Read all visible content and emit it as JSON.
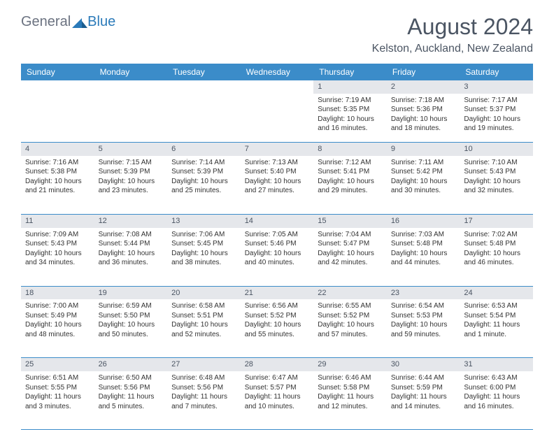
{
  "logo": {
    "part1": "General",
    "part2": "Blue"
  },
  "title": "August 2024",
  "location": "Kelston, Auckland, New Zealand",
  "colors": {
    "header_bg": "#3b8cc9",
    "header_text": "#ffffff",
    "daynum_bg": "#e5e7eb",
    "border": "#3b8cc9",
    "title_text": "#4b5563",
    "logo_gray": "#6b7280",
    "logo_blue": "#2a7ab9"
  },
  "daysOfWeek": [
    "Sunday",
    "Monday",
    "Tuesday",
    "Wednesday",
    "Thursday",
    "Friday",
    "Saturday"
  ],
  "weeks": [
    [
      null,
      null,
      null,
      null,
      {
        "n": "1",
        "sr": "7:19 AM",
        "ss": "5:35 PM",
        "dl": "10 hours and 16 minutes."
      },
      {
        "n": "2",
        "sr": "7:18 AM",
        "ss": "5:36 PM",
        "dl": "10 hours and 18 minutes."
      },
      {
        "n": "3",
        "sr": "7:17 AM",
        "ss": "5:37 PM",
        "dl": "10 hours and 19 minutes."
      }
    ],
    [
      {
        "n": "4",
        "sr": "7:16 AM",
        "ss": "5:38 PM",
        "dl": "10 hours and 21 minutes."
      },
      {
        "n": "5",
        "sr": "7:15 AM",
        "ss": "5:39 PM",
        "dl": "10 hours and 23 minutes."
      },
      {
        "n": "6",
        "sr": "7:14 AM",
        "ss": "5:39 PM",
        "dl": "10 hours and 25 minutes."
      },
      {
        "n": "7",
        "sr": "7:13 AM",
        "ss": "5:40 PM",
        "dl": "10 hours and 27 minutes."
      },
      {
        "n": "8",
        "sr": "7:12 AM",
        "ss": "5:41 PM",
        "dl": "10 hours and 29 minutes."
      },
      {
        "n": "9",
        "sr": "7:11 AM",
        "ss": "5:42 PM",
        "dl": "10 hours and 30 minutes."
      },
      {
        "n": "10",
        "sr": "7:10 AM",
        "ss": "5:43 PM",
        "dl": "10 hours and 32 minutes."
      }
    ],
    [
      {
        "n": "11",
        "sr": "7:09 AM",
        "ss": "5:43 PM",
        "dl": "10 hours and 34 minutes."
      },
      {
        "n": "12",
        "sr": "7:08 AM",
        "ss": "5:44 PM",
        "dl": "10 hours and 36 minutes."
      },
      {
        "n": "13",
        "sr": "7:06 AM",
        "ss": "5:45 PM",
        "dl": "10 hours and 38 minutes."
      },
      {
        "n": "14",
        "sr": "7:05 AM",
        "ss": "5:46 PM",
        "dl": "10 hours and 40 minutes."
      },
      {
        "n": "15",
        "sr": "7:04 AM",
        "ss": "5:47 PM",
        "dl": "10 hours and 42 minutes."
      },
      {
        "n": "16",
        "sr": "7:03 AM",
        "ss": "5:48 PM",
        "dl": "10 hours and 44 minutes."
      },
      {
        "n": "17",
        "sr": "7:02 AM",
        "ss": "5:48 PM",
        "dl": "10 hours and 46 minutes."
      }
    ],
    [
      {
        "n": "18",
        "sr": "7:00 AM",
        "ss": "5:49 PM",
        "dl": "10 hours and 48 minutes."
      },
      {
        "n": "19",
        "sr": "6:59 AM",
        "ss": "5:50 PM",
        "dl": "10 hours and 50 minutes."
      },
      {
        "n": "20",
        "sr": "6:58 AM",
        "ss": "5:51 PM",
        "dl": "10 hours and 52 minutes."
      },
      {
        "n": "21",
        "sr": "6:56 AM",
        "ss": "5:52 PM",
        "dl": "10 hours and 55 minutes."
      },
      {
        "n": "22",
        "sr": "6:55 AM",
        "ss": "5:52 PM",
        "dl": "10 hours and 57 minutes."
      },
      {
        "n": "23",
        "sr": "6:54 AM",
        "ss": "5:53 PM",
        "dl": "10 hours and 59 minutes."
      },
      {
        "n": "24",
        "sr": "6:53 AM",
        "ss": "5:54 PM",
        "dl": "11 hours and 1 minute."
      }
    ],
    [
      {
        "n": "25",
        "sr": "6:51 AM",
        "ss": "5:55 PM",
        "dl": "11 hours and 3 minutes."
      },
      {
        "n": "26",
        "sr": "6:50 AM",
        "ss": "5:56 PM",
        "dl": "11 hours and 5 minutes."
      },
      {
        "n": "27",
        "sr": "6:48 AM",
        "ss": "5:56 PM",
        "dl": "11 hours and 7 minutes."
      },
      {
        "n": "28",
        "sr": "6:47 AM",
        "ss": "5:57 PM",
        "dl": "11 hours and 10 minutes."
      },
      {
        "n": "29",
        "sr": "6:46 AM",
        "ss": "5:58 PM",
        "dl": "11 hours and 12 minutes."
      },
      {
        "n": "30",
        "sr": "6:44 AM",
        "ss": "5:59 PM",
        "dl": "11 hours and 14 minutes."
      },
      {
        "n": "31",
        "sr": "6:43 AM",
        "ss": "6:00 PM",
        "dl": "11 hours and 16 minutes."
      }
    ]
  ],
  "labels": {
    "sunrise": "Sunrise:",
    "sunset": "Sunset:",
    "daylight": "Daylight:"
  }
}
